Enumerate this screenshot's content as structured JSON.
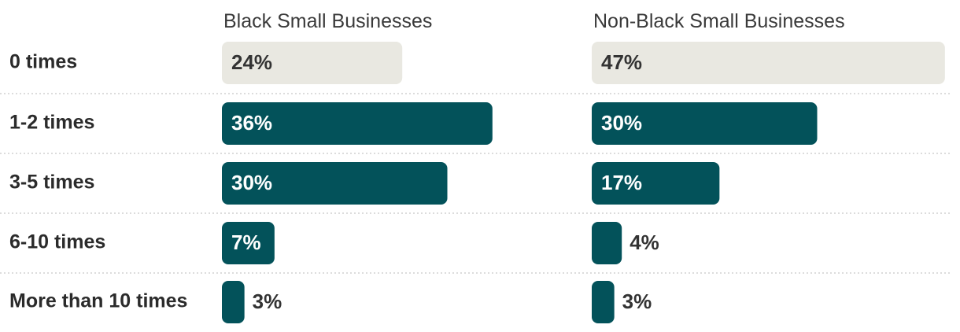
{
  "chart_data": {
    "type": "bar",
    "orientation": "horizontal",
    "categories": [
      "0 times",
      "1-2 times",
      "3-5 times",
      "6-10 times",
      "More than 10 times"
    ],
    "series": [
      {
        "name": "Black Small Businesses",
        "values": [
          24,
          36,
          30,
          7,
          3
        ],
        "labels": [
          "24%",
          "36%",
          "30%",
          "7%",
          "3%"
        ]
      },
      {
        "name": "Non-Black Small Businesses",
        "values": [
          47,
          30,
          17,
          4,
          3
        ],
        "labels": [
          "47%",
          "30%",
          "17%",
          "4%",
          "3%"
        ]
      }
    ],
    "xlim": [
      0,
      48
    ],
    "grid": false,
    "colors": {
      "first_category_bar": "#e9e8e1",
      "first_category_text": "#333333",
      "bar": "#03525a",
      "bar_text": "#ffffff",
      "outside_text": "#333333"
    }
  }
}
